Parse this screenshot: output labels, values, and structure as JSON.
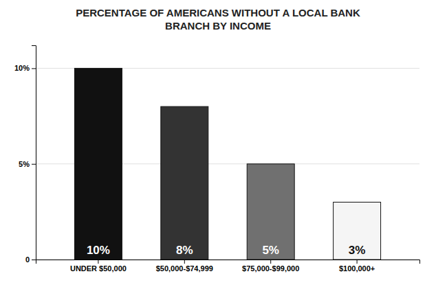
{
  "chart_data": {
    "type": "bar",
    "title": "PERCENTAGE OF AMERICANS WITHOUT A LOCAL BANK\nBRANCH BY INCOME",
    "categories": [
      "UNDER $50,000",
      "$50,000-$74,999",
      "$75,000-$99,000",
      "$100,000+"
    ],
    "values": [
      10,
      8,
      5,
      3
    ],
    "value_labels": [
      "10%",
      "8%",
      "5%",
      "3%"
    ],
    "data_labels": true,
    "colors": [
      "#111111",
      "#333333",
      "#707070",
      "#f5f5f5"
    ],
    "ylim": [
      0,
      11.2
    ],
    "yticks": [
      0,
      {
        "value": 5,
        "label": "5%"
      },
      {
        "value": 10,
        "label": "10%"
      }
    ],
    "grid": true
  }
}
